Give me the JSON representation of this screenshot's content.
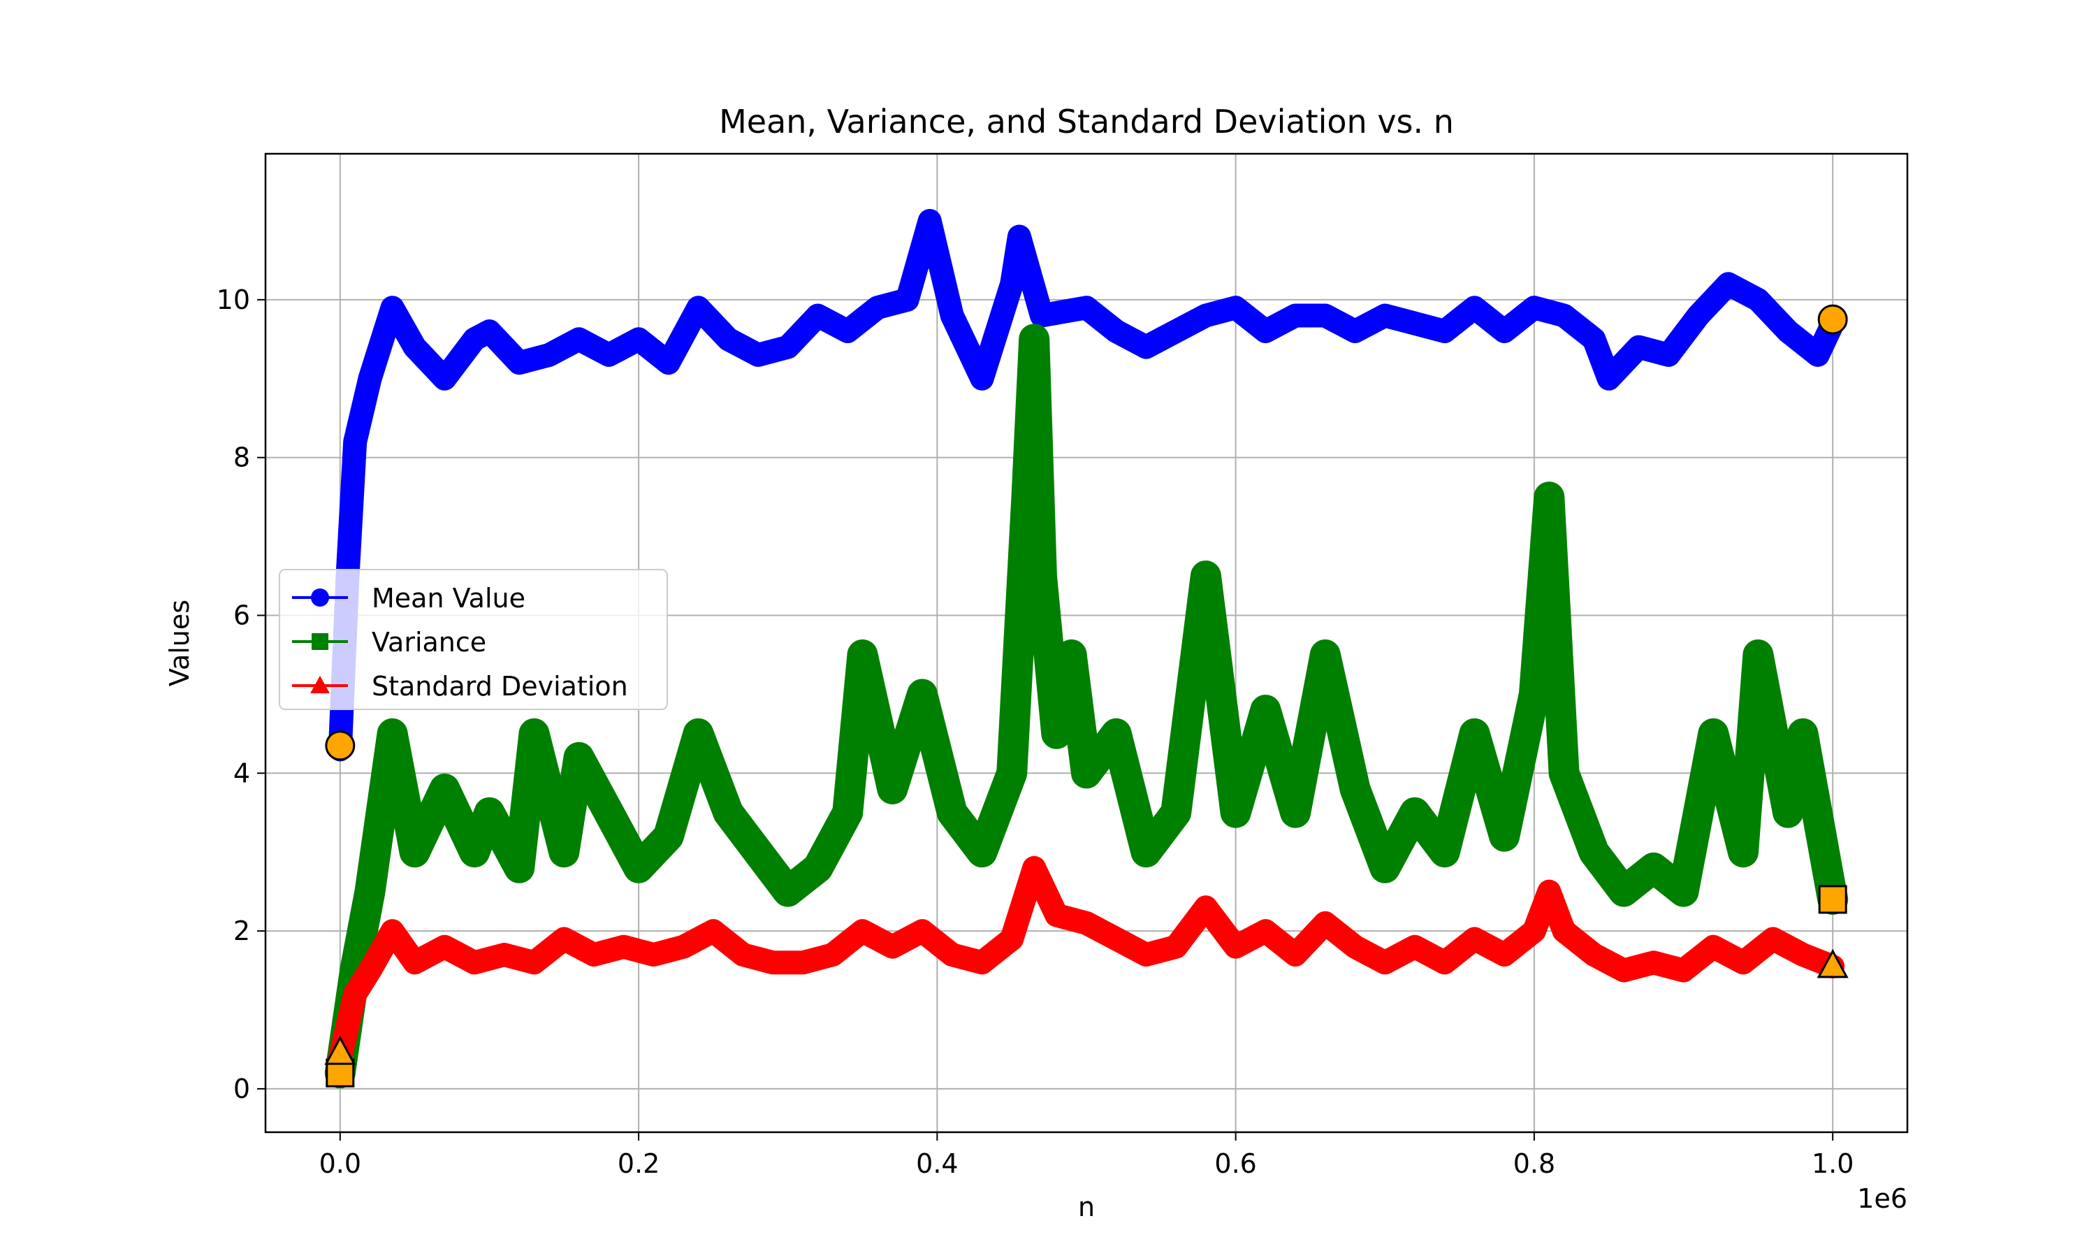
{
  "chart_data": {
    "type": "line",
    "title": "Mean, Variance, and Standard Deviation vs. n",
    "xlabel": "n",
    "ylabel": "Values",
    "x_offset_text": "1e6",
    "xlim": [
      -0.05,
      1.05
    ],
    "ylim": [
      -0.55,
      11.85
    ],
    "x_tick_values": [
      0.0,
      0.2,
      0.4,
      0.6,
      0.8,
      1.0
    ],
    "x_tick_labels": [
      "0.0",
      "0.2",
      "0.4",
      "0.6",
      "0.8",
      "1.0"
    ],
    "y_tick_values": [
      0,
      2,
      4,
      6,
      8,
      10
    ],
    "y_tick_labels": [
      "0",
      "2",
      "4",
      "6",
      "8",
      "10"
    ],
    "grid": true,
    "legend_position": "center-left",
    "legend": [
      {
        "label": "Mean Value",
        "color": "#0000ff",
        "marker": "circle"
      },
      {
        "label": "Variance",
        "color": "#008000",
        "marker": "square"
      },
      {
        "label": "Standard Deviation",
        "color": "#ff0000",
        "marker": "triangle"
      }
    ],
    "series": [
      {
        "name": "Mean Value",
        "color": "#0000ff",
        "marker": "circle",
        "x": [
          0.0,
          0.005,
          0.01,
          0.02,
          0.03,
          0.035,
          0.05,
          0.07,
          0.09,
          0.1,
          0.12,
          0.14,
          0.16,
          0.18,
          0.2,
          0.22,
          0.24,
          0.26,
          0.28,
          0.3,
          0.32,
          0.34,
          0.36,
          0.38,
          0.395,
          0.41,
          0.43,
          0.45,
          0.455,
          0.47,
          0.5,
          0.52,
          0.54,
          0.56,
          0.58,
          0.6,
          0.62,
          0.64,
          0.66,
          0.68,
          0.7,
          0.72,
          0.74,
          0.76,
          0.78,
          0.8,
          0.82,
          0.84,
          0.85,
          0.87,
          0.89,
          0.91,
          0.93,
          0.95,
          0.97,
          0.99,
          1.0
        ],
        "y": [
          4.3,
          6.5,
          8.2,
          9.0,
          9.6,
          9.9,
          9.4,
          9.0,
          9.5,
          9.6,
          9.2,
          9.3,
          9.5,
          9.3,
          9.5,
          9.2,
          9.9,
          9.5,
          9.3,
          9.4,
          9.8,
          9.6,
          9.9,
          10.0,
          11.0,
          9.8,
          9.0,
          10.2,
          10.8,
          9.8,
          9.9,
          9.6,
          9.4,
          9.6,
          9.8,
          9.9,
          9.6,
          9.8,
          9.8,
          9.6,
          9.8,
          9.7,
          9.6,
          9.9,
          9.6,
          9.9,
          9.8,
          9.5,
          9.0,
          9.4,
          9.3,
          9.8,
          10.2,
          10.0,
          9.6,
          9.3,
          9.7
        ]
      },
      {
        "name": "Variance",
        "color": "#008000",
        "marker": "square",
        "x": [
          0.0,
          0.01,
          0.02,
          0.035,
          0.05,
          0.07,
          0.09,
          0.1,
          0.12,
          0.13,
          0.15,
          0.16,
          0.18,
          0.2,
          0.22,
          0.24,
          0.26,
          0.28,
          0.3,
          0.32,
          0.34,
          0.35,
          0.37,
          0.39,
          0.41,
          0.43,
          0.45,
          0.46,
          0.465,
          0.47,
          0.48,
          0.49,
          0.5,
          0.52,
          0.54,
          0.56,
          0.58,
          0.6,
          0.62,
          0.64,
          0.66,
          0.68,
          0.7,
          0.72,
          0.74,
          0.76,
          0.78,
          0.8,
          0.81,
          0.82,
          0.84,
          0.86,
          0.88,
          0.9,
          0.92,
          0.94,
          0.95,
          0.97,
          0.98,
          1.0
        ],
        "y": [
          0.2,
          1.5,
          2.5,
          4.5,
          3.0,
          3.8,
          3.0,
          3.5,
          2.8,
          4.5,
          3.0,
          4.2,
          3.5,
          2.8,
          3.2,
          4.5,
          3.5,
          3.0,
          2.5,
          2.8,
          3.5,
          5.5,
          3.8,
          5.0,
          3.5,
          3.0,
          4.0,
          7.5,
          9.5,
          6.5,
          4.5,
          5.5,
          4.0,
          4.5,
          3.0,
          3.5,
          6.5,
          3.5,
          4.8,
          3.5,
          5.5,
          3.8,
          2.8,
          3.5,
          3.0,
          4.5,
          3.2,
          5.0,
          7.5,
          4.0,
          3.0,
          2.5,
          2.8,
          2.5,
          4.5,
          3.0,
          5.5,
          3.5,
          4.5,
          2.4
        ]
      },
      {
        "name": "Standard Deviation",
        "color": "#ff0000",
        "marker": "triangle",
        "x": [
          0.0,
          0.01,
          0.02,
          0.035,
          0.05,
          0.07,
          0.09,
          0.11,
          0.13,
          0.15,
          0.17,
          0.19,
          0.21,
          0.23,
          0.25,
          0.27,
          0.29,
          0.31,
          0.33,
          0.35,
          0.37,
          0.39,
          0.41,
          0.43,
          0.45,
          0.465,
          0.48,
          0.5,
          0.52,
          0.54,
          0.56,
          0.58,
          0.6,
          0.62,
          0.64,
          0.66,
          0.68,
          0.7,
          0.72,
          0.74,
          0.76,
          0.78,
          0.8,
          0.81,
          0.82,
          0.84,
          0.86,
          0.88,
          0.9,
          0.92,
          0.94,
          0.96,
          0.98,
          1.0
        ],
        "y": [
          0.4,
          1.2,
          1.5,
          2.0,
          1.6,
          1.8,
          1.6,
          1.7,
          1.6,
          1.9,
          1.7,
          1.8,
          1.7,
          1.8,
          2.0,
          1.7,
          1.6,
          1.6,
          1.7,
          2.0,
          1.8,
          2.0,
          1.7,
          1.6,
          1.9,
          2.8,
          2.2,
          2.1,
          1.9,
          1.7,
          1.8,
          2.3,
          1.8,
          2.0,
          1.7,
          2.1,
          1.8,
          1.6,
          1.8,
          1.6,
          1.9,
          1.7,
          2.0,
          2.5,
          2.0,
          1.7,
          1.5,
          1.6,
          1.5,
          1.8,
          1.6,
          1.9,
          1.7,
          1.55
        ]
      }
    ],
    "highlighted_points": [
      {
        "series": "Mean Value",
        "x": 0.0,
        "y": 4.35,
        "color": "#ffa500",
        "marker": "circle"
      },
      {
        "series": "Mean Value",
        "x": 1.0,
        "y": 9.75,
        "color": "#ffa500",
        "marker": "circle"
      },
      {
        "series": "Variance",
        "x": 0.0,
        "y": 0.2,
        "color": "#ffa500",
        "marker": "square"
      },
      {
        "series": "Variance",
        "x": 1.0,
        "y": 2.4,
        "color": "#ffa500",
        "marker": "square"
      },
      {
        "series": "Standard Deviation",
        "x": 0.0,
        "y": 0.45,
        "color": "#ffa500",
        "marker": "triangle"
      },
      {
        "series": "Standard Deviation",
        "x": 1.0,
        "y": 1.55,
        "color": "#ffa500",
        "marker": "triangle"
      }
    ]
  }
}
